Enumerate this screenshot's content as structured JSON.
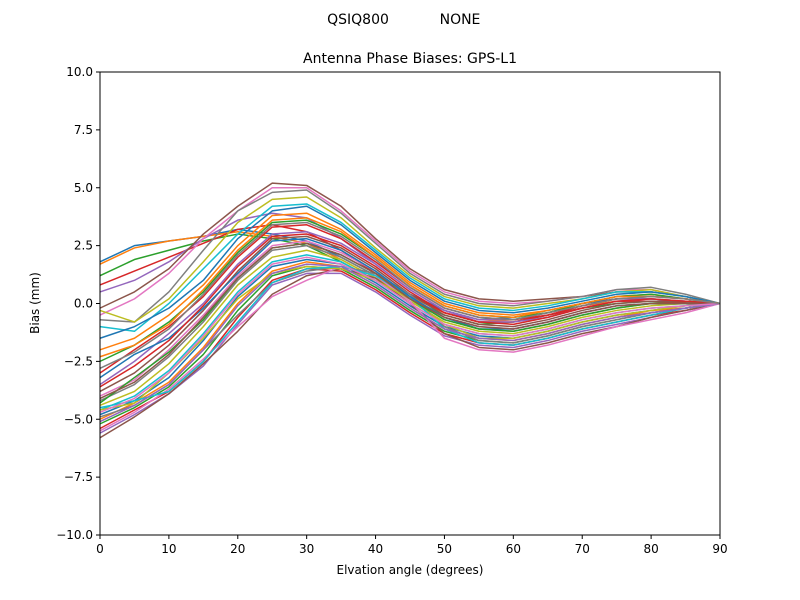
{
  "figure": {
    "suptitle_left": "QSIQ800",
    "suptitle_right": "NONE"
  },
  "chart_data": {
    "type": "line",
    "title": "Antenna Phase Biases: GPS-L1",
    "xlabel": "Elvation angle (degrees)",
    "ylabel": "Bias (mm)",
    "xlim": [
      0,
      90
    ],
    "ylim": [
      -10,
      10
    ],
    "xticks": [
      0,
      10,
      20,
      30,
      40,
      50,
      60,
      70,
      80,
      90
    ],
    "yticks": [
      -10.0,
      -7.5,
      -5.0,
      -2.5,
      0.0,
      2.5,
      5.0,
      7.5,
      10.0
    ],
    "xtick_labels": [
      "0",
      "10",
      "20",
      "30",
      "40",
      "50",
      "60",
      "70",
      "80",
      "90"
    ],
    "ytick_labels": [
      "−10.0",
      "−7.5",
      "−5.0",
      "−2.5",
      "0.0",
      "2.5",
      "5.0",
      "7.5",
      "10.0"
    ],
    "grid": false,
    "x": [
      0,
      5,
      10,
      15,
      20,
      25,
      30,
      35,
      40,
      45,
      50,
      55,
      60,
      65,
      70,
      75,
      80,
      85,
      90
    ],
    "colors": [
      "#1f77b4",
      "#ff7f0e",
      "#2ca02c",
      "#d62728",
      "#9467bd",
      "#8c564b",
      "#e377c2",
      "#7f7f7f",
      "#bcbd22",
      "#17becf"
    ],
    "series": [
      {
        "values": [
          1.8,
          2.5,
          2.7,
          2.9,
          3.2,
          3.0,
          2.7,
          2.0,
          1.2,
          0.4,
          -0.3,
          -0.7,
          -0.6,
          -0.3,
          0.0,
          0.2,
          0.2,
          0.1,
          0.0
        ]
      },
      {
        "values": [
          1.7,
          2.4,
          2.7,
          2.9,
          3.1,
          2.9,
          2.6,
          1.9,
          1.1,
          0.3,
          -0.4,
          -0.8,
          -0.7,
          -0.4,
          -0.1,
          0.1,
          0.1,
          0.05,
          0.0
        ]
      },
      {
        "values": [
          1.2,
          1.9,
          2.3,
          2.7,
          3.0,
          2.8,
          2.5,
          1.8,
          1.0,
          0.2,
          -0.5,
          -0.9,
          -0.8,
          -0.5,
          -0.2,
          0.0,
          0.1,
          0.0,
          0.0
        ]
      },
      {
        "values": [
          0.8,
          1.4,
          2.0,
          2.6,
          3.2,
          3.4,
          3.1,
          2.3,
          1.3,
          0.4,
          -0.4,
          -0.8,
          -0.8,
          -0.5,
          -0.2,
          0.1,
          0.1,
          0.05,
          0.0
        ]
      },
      {
        "values": [
          0.5,
          1.0,
          1.8,
          2.8,
          3.6,
          3.9,
          3.7,
          2.8,
          1.7,
          0.6,
          -0.3,
          -0.7,
          -0.7,
          -0.4,
          -0.1,
          0.2,
          0.2,
          0.1,
          0.0
        ]
      },
      {
        "values": [
          -0.2,
          0.5,
          1.5,
          3.0,
          4.2,
          5.2,
          5.1,
          4.2,
          2.8,
          1.5,
          0.6,
          0.2,
          0.1,
          0.2,
          0.3,
          0.5,
          0.5,
          0.3,
          0.0
        ]
      },
      {
        "values": [
          -0.5,
          0.2,
          1.3,
          2.8,
          4.0,
          5.0,
          5.0,
          4.0,
          2.7,
          1.4,
          0.5,
          0.1,
          0.0,
          0.1,
          0.3,
          0.6,
          0.6,
          0.3,
          0.0
        ]
      },
      {
        "values": [
          -0.7,
          -0.8,
          0.5,
          2.3,
          4.0,
          4.8,
          4.9,
          3.9,
          2.6,
          1.3,
          0.4,
          0.0,
          -0.1,
          0.1,
          0.3,
          0.6,
          0.7,
          0.4,
          0.0
        ]
      },
      {
        "values": [
          -0.3,
          -0.8,
          0.2,
          1.8,
          3.5,
          4.5,
          4.6,
          3.7,
          2.4,
          1.2,
          0.3,
          -0.1,
          -0.2,
          0.0,
          0.2,
          0.5,
          0.6,
          0.3,
          0.0
        ]
      },
      {
        "values": [
          -1.0,
          -1.2,
          0.0,
          1.5,
          3.0,
          4.2,
          4.3,
          3.5,
          2.3,
          1.1,
          0.2,
          -0.2,
          -0.3,
          -0.1,
          0.2,
          0.5,
          0.5,
          0.3,
          0.0
        ]
      },
      {
        "values": [
          -1.5,
          -1.0,
          -0.2,
          1.0,
          2.8,
          4.0,
          4.2,
          3.4,
          2.2,
          1.0,
          0.1,
          -0.3,
          -0.4,
          -0.2,
          0.1,
          0.4,
          0.5,
          0.3,
          0.0
        ]
      },
      {
        "values": [
          -2.0,
          -1.5,
          -0.5,
          0.8,
          2.5,
          3.8,
          3.9,
          3.2,
          2.1,
          0.9,
          0.0,
          -0.4,
          -0.5,
          -0.3,
          0.0,
          0.3,
          0.4,
          0.2,
          0.0
        ]
      },
      {
        "values": [
          -2.5,
          -1.8,
          -0.8,
          0.5,
          2.2,
          3.5,
          3.6,
          3.0,
          2.0,
          0.8,
          -0.1,
          -0.5,
          -0.6,
          -0.4,
          0.0,
          0.3,
          0.4,
          0.2,
          0.0
        ]
      },
      {
        "values": [
          -3.0,
          -2.0,
          -1.0,
          0.3,
          2.0,
          3.3,
          3.4,
          2.8,
          1.8,
          0.7,
          -0.2,
          -0.6,
          -0.7,
          -0.5,
          -0.1,
          0.2,
          0.3,
          0.2,
          0.0
        ]
      },
      {
        "values": [
          -3.5,
          -2.5,
          -1.3,
          0.0,
          1.7,
          3.0,
          3.1,
          2.6,
          1.7,
          0.6,
          -0.3,
          -0.8,
          -0.8,
          -0.6,
          -0.2,
          0.1,
          0.2,
          0.1,
          0.0
        ]
      },
      {
        "values": [
          -3.8,
          -3.0,
          -1.8,
          -0.3,
          1.4,
          2.8,
          2.9,
          2.4,
          1.5,
          0.4,
          -0.5,
          -0.9,
          -1.0,
          -0.7,
          -0.3,
          0.0,
          0.1,
          0.1,
          0.0
        ]
      },
      {
        "values": [
          -4.0,
          -3.3,
          -2.0,
          -0.5,
          1.2,
          2.5,
          2.7,
          2.2,
          1.4,
          0.3,
          -0.6,
          -1.0,
          -1.1,
          -0.8,
          -0.4,
          -0.1,
          0.0,
          0.0,
          0.0
        ]
      },
      {
        "values": [
          -4.2,
          -3.5,
          -2.3,
          -0.8,
          1.0,
          2.3,
          2.5,
          2.0,
          1.2,
          0.2,
          -0.7,
          -1.1,
          -1.2,
          -0.9,
          -0.5,
          -0.2,
          0.0,
          0.0,
          0.0
        ]
      },
      {
        "values": [
          -4.4,
          -3.8,
          -2.6,
          -1.0,
          0.8,
          2.0,
          2.3,
          1.9,
          1.1,
          0.1,
          -0.8,
          -1.2,
          -1.3,
          -1.0,
          -0.6,
          -0.3,
          -0.1,
          0.0,
          0.0
        ]
      },
      {
        "values": [
          -4.6,
          -4.0,
          -2.9,
          -1.3,
          0.5,
          1.8,
          2.1,
          1.8,
          1.0,
          0.0,
          -0.9,
          -1.3,
          -1.4,
          -1.1,
          -0.7,
          -0.4,
          -0.2,
          -0.1,
          0.0
        ]
      },
      {
        "values": [
          -4.8,
          -4.2,
          -3.2,
          -1.6,
          0.3,
          1.6,
          1.9,
          1.7,
          0.9,
          -0.1,
          -1.0,
          -1.4,
          -1.5,
          -1.2,
          -0.8,
          -0.5,
          -0.3,
          -0.1,
          0.0
        ]
      },
      {
        "values": [
          -5.0,
          -4.3,
          -3.4,
          -1.9,
          0.0,
          1.4,
          1.8,
          1.6,
          0.8,
          -0.2,
          -1.1,
          -1.5,
          -1.6,
          -1.3,
          -0.9,
          -0.6,
          -0.3,
          -0.2,
          0.0
        ]
      },
      {
        "values": [
          -5.2,
          -4.5,
          -3.6,
          -2.2,
          -0.3,
          1.2,
          1.6,
          1.5,
          0.7,
          -0.3,
          -1.2,
          -1.6,
          -1.7,
          -1.4,
          -1.0,
          -0.7,
          -0.4,
          -0.2,
          0.0
        ]
      },
      {
        "values": [
          -5.4,
          -4.6,
          -3.8,
          -2.5,
          -0.6,
          1.0,
          1.5,
          1.4,
          0.6,
          -0.4,
          -1.3,
          -1.7,
          -1.8,
          -1.5,
          -1.1,
          -0.8,
          -0.5,
          -0.3,
          0.0
        ]
      },
      {
        "values": [
          -5.6,
          -4.8,
          -3.9,
          -2.7,
          -0.9,
          0.8,
          1.3,
          1.3,
          0.5,
          -0.5,
          -1.4,
          -1.8,
          -1.9,
          -1.6,
          -1.2,
          -0.9,
          -0.6,
          -0.3,
          0.0
        ]
      },
      {
        "values": [
          -5.8,
          -4.9,
          -3.9,
          -2.6,
          -1.2,
          0.4,
          1.2,
          1.5,
          1.1,
          0.0,
          -1.3,
          -1.9,
          -2.0,
          -1.7,
          -1.3,
          -1.0,
          -0.6,
          -0.3,
          0.0
        ]
      },
      {
        "values": [
          -5.5,
          -4.7,
          -3.7,
          -2.4,
          -1.0,
          0.3,
          1.0,
          1.6,
          1.2,
          0.1,
          -1.5,
          -2.0,
          -2.1,
          -1.8,
          -1.4,
          -1.0,
          -0.7,
          -0.4,
          0.0
        ]
      },
      {
        "values": [
          -4.9,
          -4.4,
          -3.5,
          -2.0,
          -0.5,
          0.9,
          1.4,
          1.6,
          1.3,
          0.4,
          -1.0,
          -1.6,
          -1.7,
          -1.4,
          -1.0,
          -0.7,
          -0.4,
          -0.2,
          0.0
        ]
      },
      {
        "values": [
          -4.6,
          -4.3,
          -3.0,
          -1.5,
          0.2,
          1.3,
          1.6,
          1.5,
          1.0,
          0.2,
          -0.9,
          -1.5,
          -1.5,
          -1.2,
          -0.8,
          -0.5,
          -0.3,
          -0.1,
          0.0
        ]
      },
      {
        "values": [
          -4.5,
          -4.2,
          -3.8,
          -2.5,
          -0.8,
          0.9,
          1.5,
          1.6,
          1.2,
          0.3,
          -1.1,
          -1.7,
          -1.8,
          -1.5,
          -1.1,
          -0.8,
          -0.5,
          -0.2,
          0.0
        ]
      },
      {
        "values": [
          -3.2,
          -2.2,
          -1.5,
          -0.2,
          1.3,
          2.7,
          2.8,
          2.3,
          1.4,
          0.3,
          -0.6,
          -1.1,
          -1.1,
          -0.8,
          -0.4,
          -0.1,
          0.0,
          0.0,
          0.0
        ]
      },
      {
        "values": [
          -2.3,
          -1.8,
          -0.9,
          0.6,
          2.3,
          3.6,
          3.7,
          3.1,
          2.0,
          0.8,
          -0.1,
          -0.5,
          -0.6,
          -0.3,
          0.0,
          0.3,
          0.3,
          0.2,
          0.0
        ]
      },
      {
        "values": [
          -4.3,
          -3.2,
          -2.1,
          -0.7,
          1.1,
          2.4,
          2.6,
          2.1,
          1.3,
          0.2,
          -0.7,
          -1.1,
          -1.2,
          -0.9,
          -0.5,
          -0.2,
          0.0,
          0.0,
          0.0
        ]
      },
      {
        "values": [
          -3.6,
          -2.7,
          -1.6,
          -0.1,
          1.6,
          2.9,
          3.0,
          2.5,
          1.6,
          0.5,
          -0.4,
          -0.8,
          -0.9,
          -0.6,
          -0.2,
          0.1,
          0.2,
          0.1,
          0.0
        ]
      },
      {
        "values": [
          -5.1,
          -4.4,
          -3.5,
          -2.0,
          -0.1,
          1.3,
          1.7,
          1.6,
          0.8,
          -0.2,
          -1.1,
          -1.5,
          -1.6,
          -1.3,
          -0.9,
          -0.6,
          -0.4,
          -0.2,
          0.0
        ]
      },
      {
        "values": [
          -4.1,
          -3.4,
          -2.2,
          -0.6,
          1.1,
          2.4,
          2.6,
          2.1,
          1.3,
          0.2,
          -0.6,
          -1.0,
          -1.1,
          -0.8,
          -0.4,
          -0.1,
          0.0,
          0.0,
          0.0
        ]
      },
      {
        "values": [
          -4.7,
          -4.1,
          -3.0,
          -1.4,
          0.4,
          1.7,
          2.0,
          1.7,
          1.0,
          0.0,
          -0.9,
          -1.3,
          -1.4,
          -1.1,
          -0.7,
          -0.4,
          -0.2,
          -0.1,
          0.0
        ]
      },
      {
        "values": [
          -2.8,
          -2.1,
          -1.1,
          0.4,
          2.1,
          3.4,
          3.5,
          2.9,
          1.9,
          0.7,
          -0.2,
          -0.6,
          -0.7,
          -0.4,
          -0.1,
          0.2,
          0.3,
          0.2,
          0.0
        ]
      }
    ]
  }
}
